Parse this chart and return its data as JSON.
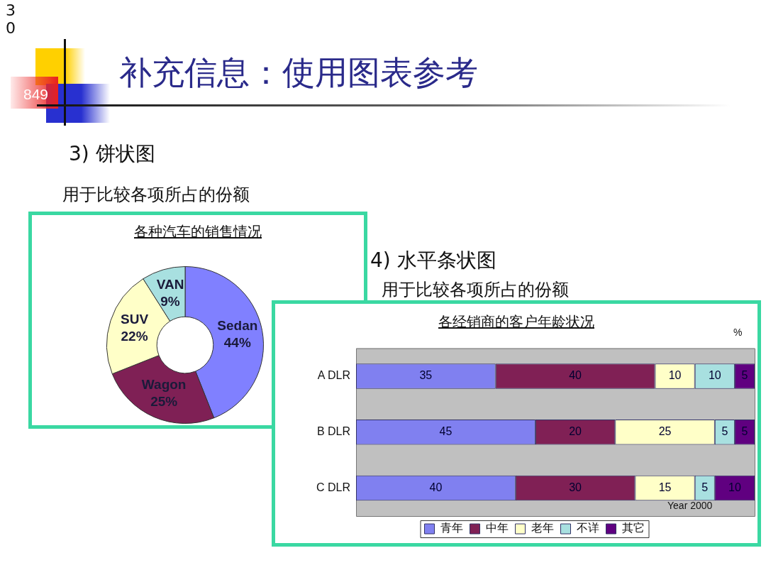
{
  "chart_data": [
    {
      "type": "donut",
      "title": "各种汽车的销售情况",
      "categories": [
        "Sedan",
        "Wagon",
        "SUV",
        "VAN"
      ],
      "values": [
        44,
        25,
        22,
        9
      ],
      "colors": [
        "#8080ff",
        "#7f2055",
        "#ffffc8",
        "#a8e0e0"
      ],
      "value_labels": [
        "44%",
        "25%",
        "22%",
        "9%"
      ],
      "legend": false,
      "annotations": [
        "30",
        "849",
        "补充信息：使用图表参考",
        "3) 饼状图",
        "用于比较各项所占的份额"
      ]
    },
    {
      "type": "bar",
      "orientation": "horizontal",
      "stacked": true,
      "title": "各经销商的客户年龄状况",
      "categories": [
        "A DLR",
        "B DLR",
        "C DLR"
      ],
      "series": [
        {
          "name": "青年",
          "color": "#8080f0",
          "values": [
            35,
            45,
            40
          ]
        },
        {
          "name": "中年",
          "color": "#802055",
          "values": [
            40,
            20,
            30
          ]
        },
        {
          "name": "老年",
          "color": "#ffffc8",
          "values": [
            10,
            25,
            15
          ]
        },
        {
          "name": "不详",
          "color": "#a8e0e0",
          "values": [
            10,
            5,
            5
          ]
        },
        {
          "name": "其它",
          "color": "#600080",
          "values": [
            5,
            5,
            10
          ]
        }
      ],
      "xlim": [
        0,
        100
      ],
      "tick_labels": "y",
      "data_labels": true,
      "legend": "bottom",
      "grid": false,
      "annotations": [
        "4) 水平条状图",
        "用于比较各项所占的份额",
        "%",
        "Year 2000"
      ]
    }
  ]
}
